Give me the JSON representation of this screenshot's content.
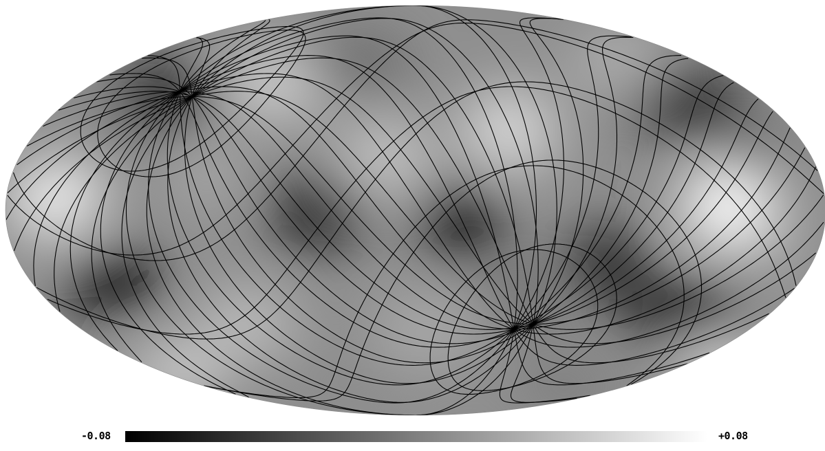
{
  "map": {
    "projection": "mollweide",
    "colormap": "grayscale",
    "background": "#ffffff",
    "graticule_color": "#000000",
    "graticules": 2
  },
  "colorbar": {
    "min_label": "-0.08",
    "max_label": "+0.08",
    "min_color": "#000000",
    "max_color": "#ffffff"
  }
}
